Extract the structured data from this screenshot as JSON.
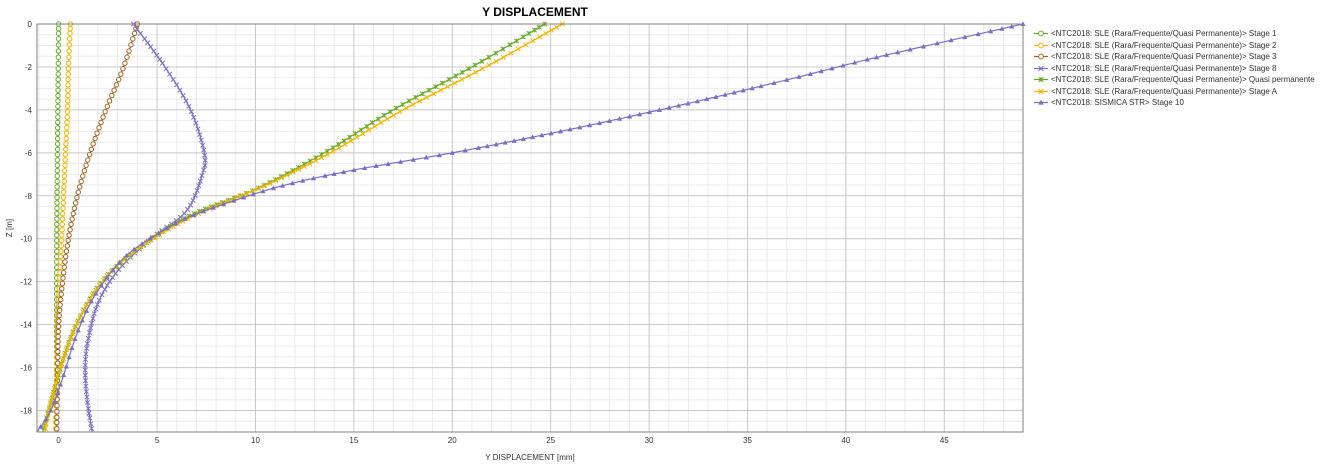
{
  "chart_data": {
    "type": "line",
    "title": "Y DISPLACEMENT",
    "xlabel": "Y DISPLACEMENT [mm]",
    "ylabel": "Z [m]",
    "xlim": [
      -1.1,
      49
    ],
    "ylim": [
      -19,
      0
    ],
    "x_ticks": [
      0,
      5,
      10,
      15,
      20,
      25,
      30,
      35,
      40,
      45
    ],
    "y_ticks": [
      0,
      -2,
      -4,
      -6,
      -8,
      -10,
      -12,
      -14,
      -16,
      -18
    ],
    "grid": true,
    "legend_position": "right",
    "series": [
      {
        "name": "<NTC2018: SLE (Rara/Frequente/Quasi Permanente)> Stage 1",
        "color": "#6aaa2e",
        "marker": "circle",
        "points": [
          [
            0.0,
            0
          ],
          [
            -0.02,
            -2
          ],
          [
            -0.04,
            -4
          ],
          [
            -0.06,
            -6
          ],
          [
            -0.08,
            -8
          ],
          [
            -0.1,
            -10
          ],
          [
            -0.1,
            -12
          ],
          [
            -0.1,
            -14
          ],
          [
            -0.1,
            -16
          ],
          [
            -0.1,
            -19
          ]
        ]
      },
      {
        "name": "<NTC2018: SLE (Rara/Frequente/Quasi Permanente)> Stage 2",
        "color": "#f0b400",
        "marker": "circle",
        "points": [
          [
            0.6,
            0
          ],
          [
            0.5,
            -2
          ],
          [
            0.45,
            -4
          ],
          [
            0.35,
            -6
          ],
          [
            0.25,
            -8
          ],
          [
            0.15,
            -10
          ],
          [
            0.05,
            -12
          ],
          [
            -0.05,
            -14
          ],
          [
            -0.1,
            -16
          ],
          [
            -0.15,
            -19
          ]
        ]
      },
      {
        "name": "<NTC2018: SLE (Rara/Frequente/Quasi Permanente)> Stage 3",
        "color": "#a0642a",
        "marker": "circle",
        "points": [
          [
            4.0,
            0
          ],
          [
            3.3,
            -2
          ],
          [
            2.4,
            -4
          ],
          [
            1.6,
            -6
          ],
          [
            0.95,
            -8
          ],
          [
            0.5,
            -10
          ],
          [
            0.2,
            -12
          ],
          [
            0.0,
            -14
          ],
          [
            -0.05,
            -16
          ],
          [
            -0.1,
            -19
          ]
        ]
      },
      {
        "name": "<NTC2018: SLE (Rara/Frequente/Quasi Permanente)> Stage 8",
        "color": "#7b6fc2",
        "marker": "x",
        "points": [
          [
            3.8,
            0
          ],
          [
            5.4,
            -2
          ],
          [
            6.7,
            -4
          ],
          [
            7.4,
            -6
          ],
          [
            7.3,
            -7
          ],
          [
            6.5,
            -8.7
          ],
          [
            4.7,
            -10
          ],
          [
            3.0,
            -11.5
          ],
          [
            2.0,
            -13
          ],
          [
            1.5,
            -14.7
          ],
          [
            1.35,
            -16
          ],
          [
            1.45,
            -17.5
          ],
          [
            1.7,
            -19
          ]
        ]
      },
      {
        "name": "<NTC2018: SLE (Rara/Frequente/Quasi Permanente)> Quasi permanente",
        "color": "#6aaa2e",
        "marker": "star",
        "points": [
          [
            24.7,
            0
          ],
          [
            21.0,
            -2
          ],
          [
            17.0,
            -4
          ],
          [
            13.5,
            -6
          ],
          [
            10.0,
            -7.7
          ],
          [
            6.5,
            -9
          ],
          [
            4.0,
            -10.5
          ],
          [
            2.2,
            -12
          ],
          [
            0.9,
            -14
          ],
          [
            0.1,
            -16
          ],
          [
            -0.5,
            -18
          ],
          [
            -0.8,
            -19
          ]
        ]
      },
      {
        "name": "<NTC2018: SLE (Rara/Frequente/Quasi Permanente)> Stage A",
        "color": "#f0b400",
        "marker": "x",
        "points": [
          [
            25.6,
            0
          ],
          [
            21.7,
            -2
          ],
          [
            17.5,
            -4
          ],
          [
            13.8,
            -6
          ],
          [
            10.3,
            -7.6
          ],
          [
            6.7,
            -9
          ],
          [
            4.0,
            -10.5
          ],
          [
            2.2,
            -12
          ],
          [
            0.9,
            -14
          ],
          [
            0.1,
            -16
          ],
          [
            -0.5,
            -18
          ],
          [
            -0.7,
            -19
          ]
        ]
      },
      {
        "name": "<NTC2018: SISMICA STR> Stage 10",
        "color": "#7b6fc2",
        "marker": "triangle",
        "points": [
          [
            49.0,
            0
          ],
          [
            41.8,
            -1.5
          ],
          [
            37.0,
            -2.6
          ],
          [
            31.5,
            -3.8
          ],
          [
            25.5,
            -5.0
          ],
          [
            20.0,
            -6.0
          ],
          [
            15.0,
            -6.8
          ],
          [
            11.5,
            -7.5
          ],
          [
            9.0,
            -8.2
          ],
          [
            6.6,
            -9.0
          ],
          [
            4.8,
            -9.9
          ],
          [
            3.2,
            -11.0
          ],
          [
            1.8,
            -12.7
          ],
          [
            0.9,
            -14.5
          ],
          [
            0.2,
            -16.5
          ],
          [
            -0.4,
            -18
          ],
          [
            -1.1,
            -19
          ]
        ]
      }
    ]
  }
}
